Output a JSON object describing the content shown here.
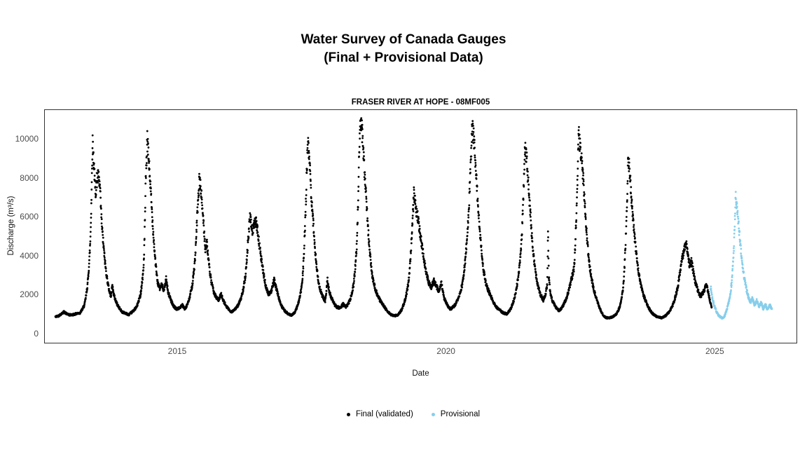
{
  "header": {
    "title_line1": "Water Survey of Canada Gauges",
    "title_line2": "(Final + Provisional Data)"
  },
  "legend": {
    "items": [
      {
        "label": "Final (validated)",
        "color": "#000000"
      },
      {
        "label": "Provisional",
        "color": "#87CEEB"
      }
    ]
  },
  "colors": {
    "final": "#000000",
    "provisional": "#87CEEB",
    "panel_border": "#333333",
    "tick_text": "#4d4d4d"
  },
  "chart_data": {
    "type": "scatter",
    "title": "FRASER RIVER AT HOPE - 08MF005",
    "xlabel": "Date",
    "ylabel": "Discharge (m³/s)",
    "x_ticks": [
      2015,
      2020,
      2025
    ],
    "y_ticks": [
      0,
      2000,
      4000,
      6000,
      8000,
      10000
    ],
    "xlim": [
      2012.5,
      2026.55
    ],
    "ylim": [
      -500,
      11500
    ],
    "grid": false,
    "legend_position": "bottom",
    "point_radius_px": 1.4,
    "sample_step_days": 1,
    "noise_sigma": 0.05,
    "series": [
      {
        "name": "Final (validated)",
        "color": "#000000",
        "seed": 42,
        "points": [
          [
            2012.72,
            900
          ],
          [
            2012.78,
            950
          ],
          [
            2012.83,
            1050
          ],
          [
            2012.88,
            1150
          ],
          [
            2012.93,
            1050
          ],
          [
            2012.97,
            1000
          ],
          [
            2013.03,
            1000
          ],
          [
            2013.1,
            1050
          ],
          [
            2013.18,
            1100
          ],
          [
            2013.26,
            1500
          ],
          [
            2013.32,
            2600
          ],
          [
            2013.37,
            4800
          ],
          [
            2013.41,
            9900
          ],
          [
            2013.44,
            8600
          ],
          [
            2013.465,
            7200
          ],
          [
            2013.49,
            7900
          ],
          [
            2013.52,
            8100
          ],
          [
            2013.55,
            7500
          ],
          [
            2013.58,
            5800
          ],
          [
            2013.62,
            4400
          ],
          [
            2013.66,
            3300
          ],
          [
            2013.71,
            2400
          ],
          [
            2013.75,
            1950
          ],
          [
            2013.78,
            2500
          ],
          [
            2013.81,
            2000
          ],
          [
            2013.86,
            1600
          ],
          [
            2013.91,
            1350
          ],
          [
            2013.96,
            1150
          ],
          [
            2014.02,
            1100
          ],
          [
            2014.08,
            1000
          ],
          [
            2014.15,
            1150
          ],
          [
            2014.23,
            1400
          ],
          [
            2014.3,
            2000
          ],
          [
            2014.36,
            3400
          ],
          [
            2014.4,
            7800
          ],
          [
            2014.43,
            9950
          ],
          [
            2014.46,
            8900
          ],
          [
            2014.5,
            7100
          ],
          [
            2014.54,
            5300
          ],
          [
            2014.58,
            3800
          ],
          [
            2014.62,
            2700
          ],
          [
            2014.66,
            2350
          ],
          [
            2014.7,
            2550
          ],
          [
            2014.74,
            2250
          ],
          [
            2014.78,
            2850
          ],
          [
            2014.82,
            2150
          ],
          [
            2014.87,
            1750
          ],
          [
            2014.92,
            1450
          ],
          [
            2014.97,
            1300
          ],
          [
            2015.03,
            1350
          ],
          [
            2015.08,
            1500
          ],
          [
            2015.13,
            1300
          ],
          [
            2015.2,
            1700
          ],
          [
            2015.27,
            2600
          ],
          [
            2015.32,
            3900
          ],
          [
            2015.36,
            6200
          ],
          [
            2015.4,
            8000
          ],
          [
            2015.43,
            7300
          ],
          [
            2015.47,
            6000
          ],
          [
            2015.51,
            4400
          ],
          [
            2015.54,
            4700
          ],
          [
            2015.58,
            3500
          ],
          [
            2015.62,
            2700
          ],
          [
            2015.67,
            2150
          ],
          [
            2015.71,
            1900
          ],
          [
            2015.76,
            1750
          ],
          [
            2015.8,
            2100
          ],
          [
            2015.84,
            1750
          ],
          [
            2015.89,
            1500
          ],
          [
            2015.94,
            1300
          ],
          [
            2015.99,
            1150
          ],
          [
            2016.05,
            1250
          ],
          [
            2016.11,
            1450
          ],
          [
            2016.18,
            1900
          ],
          [
            2016.25,
            2900
          ],
          [
            2016.3,
            4600
          ],
          [
            2016.34,
            6100
          ],
          [
            2016.38,
            5300
          ],
          [
            2016.42,
            5650
          ],
          [
            2016.46,
            5750
          ],
          [
            2016.5,
            4900
          ],
          [
            2016.55,
            3900
          ],
          [
            2016.6,
            3000
          ],
          [
            2016.64,
            2400
          ],
          [
            2016.69,
            2050
          ],
          [
            2016.74,
            2250
          ],
          [
            2016.79,
            2800
          ],
          [
            2016.84,
            2250
          ],
          [
            2016.89,
            1750
          ],
          [
            2016.94,
            1400
          ],
          [
            2016.99,
            1200
          ],
          [
            2017.05,
            1050
          ],
          [
            2017.11,
            980
          ],
          [
            2017.18,
            1150
          ],
          [
            2017.25,
            1700
          ],
          [
            2017.31,
            2600
          ],
          [
            2017.36,
            5200
          ],
          [
            2017.4,
            8800
          ],
          [
            2017.425,
            9750
          ],
          [
            2017.45,
            8900
          ],
          [
            2017.48,
            7200
          ],
          [
            2017.52,
            5600
          ],
          [
            2017.56,
            4100
          ],
          [
            2017.6,
            3000
          ],
          [
            2017.64,
            2350
          ],
          [
            2017.69,
            1950
          ],
          [
            2017.74,
            1700
          ],
          [
            2017.78,
            2850
          ],
          [
            2017.81,
            2250
          ],
          [
            2017.86,
            1850
          ],
          [
            2017.91,
            1550
          ],
          [
            2017.96,
            1400
          ],
          [
            2018.02,
            1350
          ],
          [
            2018.07,
            1550
          ],
          [
            2018.13,
            1400
          ],
          [
            2018.2,
            1750
          ],
          [
            2018.27,
            2600
          ],
          [
            2018.33,
            4700
          ],
          [
            2018.37,
            9400
          ],
          [
            2018.4,
            11000
          ],
          [
            2018.43,
            10300
          ],
          [
            2018.46,
            8800
          ],
          [
            2018.5,
            7100
          ],
          [
            2018.54,
            5300
          ],
          [
            2018.58,
            3900
          ],
          [
            2018.62,
            2950
          ],
          [
            2018.67,
            2350
          ],
          [
            2018.72,
            1950
          ],
          [
            2018.77,
            1700
          ],
          [
            2018.82,
            1500
          ],
          [
            2018.87,
            1300
          ],
          [
            2018.92,
            1120
          ],
          [
            2018.97,
            1000
          ],
          [
            2019.03,
            950
          ],
          [
            2019.09,
            1000
          ],
          [
            2019.16,
            1250
          ],
          [
            2019.23,
            1800
          ],
          [
            2019.3,
            2900
          ],
          [
            2019.35,
            5100
          ],
          [
            2019.39,
            7300
          ],
          [
            2019.43,
            6400
          ],
          [
            2019.47,
            5900
          ],
          [
            2019.51,
            5100
          ],
          [
            2019.56,
            4200
          ],
          [
            2019.61,
            3300
          ],
          [
            2019.66,
            2700
          ],
          [
            2019.71,
            2400
          ],
          [
            2019.76,
            2750
          ],
          [
            2019.81,
            2450
          ],
          [
            2019.86,
            2200
          ],
          [
            2019.9,
            2650
          ],
          [
            2019.95,
            1900
          ],
          [
            2020.01,
            1500
          ],
          [
            2020.07,
            1300
          ],
          [
            2020.14,
            1450
          ],
          [
            2020.22,
            1850
          ],
          [
            2020.3,
            2700
          ],
          [
            2020.37,
            4600
          ],
          [
            2020.43,
            7600
          ],
          [
            2020.475,
            10700
          ],
          [
            2020.51,
            9900
          ],
          [
            2020.545,
            8400
          ],
          [
            2020.59,
            6300
          ],
          [
            2020.64,
            4500
          ],
          [
            2020.69,
            3200
          ],
          [
            2020.74,
            2500
          ],
          [
            2020.79,
            2150
          ],
          [
            2020.84,
            1850
          ],
          [
            2020.89,
            1550
          ],
          [
            2020.94,
            1350
          ],
          [
            2020.99,
            1250
          ],
          [
            2021.05,
            1100
          ],
          [
            2021.12,
            1050
          ],
          [
            2021.19,
            1300
          ],
          [
            2021.26,
            1850
          ],
          [
            2021.33,
            2900
          ],
          [
            2021.4,
            5200
          ],
          [
            2021.455,
            9700
          ],
          [
            2021.49,
            8900
          ],
          [
            2021.52,
            7700
          ],
          [
            2021.56,
            6100
          ],
          [
            2021.6,
            4500
          ],
          [
            2021.65,
            3250
          ],
          [
            2021.7,
            2450
          ],
          [
            2021.75,
            2000
          ],
          [
            2021.8,
            1750
          ],
          [
            2021.845,
            2150
          ],
          [
            2021.87,
            2500
          ],
          [
            2021.885,
            5400
          ],
          [
            2021.9,
            3000
          ],
          [
            2021.93,
            2100
          ],
          [
            2021.97,
            1700
          ],
          [
            2022.03,
            1400
          ],
          [
            2022.09,
            1200
          ],
          [
            2022.16,
            1450
          ],
          [
            2022.24,
            1950
          ],
          [
            2022.31,
            2700
          ],
          [
            2022.37,
            3400
          ],
          [
            2022.42,
            6800
          ],
          [
            2022.455,
            10300
          ],
          [
            2022.48,
            9600
          ],
          [
            2022.51,
            9000
          ],
          [
            2022.545,
            7800
          ],
          [
            2022.58,
            6200
          ],
          [
            2022.62,
            4600
          ],
          [
            2022.67,
            3300
          ],
          [
            2022.72,
            2500
          ],
          [
            2022.77,
            1950
          ],
          [
            2022.82,
            1550
          ],
          [
            2022.87,
            1200
          ],
          [
            2022.92,
            950
          ],
          [
            2022.97,
            850
          ],
          [
            2023.03,
            850
          ],
          [
            2023.09,
            900
          ],
          [
            2023.16,
            1050
          ],
          [
            2023.23,
            1500
          ],
          [
            2023.29,
            2600
          ],
          [
            2023.34,
            5600
          ],
          [
            2023.375,
            9000
          ],
          [
            2023.41,
            8300
          ],
          [
            2023.44,
            6900
          ],
          [
            2023.48,
            5500
          ],
          [
            2023.52,
            4300
          ],
          [
            2023.57,
            3200
          ],
          [
            2023.62,
            2450
          ],
          [
            2023.67,
            1950
          ],
          [
            2023.72,
            1600
          ],
          [
            2023.77,
            1300
          ],
          [
            2023.82,
            1100
          ],
          [
            2023.88,
            950
          ],
          [
            2023.94,
            880
          ],
          [
            2024.0,
            850
          ],
          [
            2024.07,
            950
          ],
          [
            2024.14,
            1150
          ],
          [
            2024.22,
            1600
          ],
          [
            2024.29,
            2300
          ],
          [
            2024.36,
            3600
          ],
          [
            2024.42,
            4400
          ],
          [
            2024.455,
            4700
          ],
          [
            2024.49,
            4100
          ],
          [
            2024.52,
            3500
          ],
          [
            2024.555,
            3800
          ],
          [
            2024.59,
            3200
          ],
          [
            2024.63,
            2650
          ],
          [
            2024.68,
            2200
          ],
          [
            2024.72,
            1950
          ],
          [
            2024.76,
            2100
          ],
          [
            2024.8,
            2300
          ],
          [
            2024.83,
            2600
          ],
          [
            2024.87,
            2100
          ],
          [
            2024.9,
            1700
          ],
          [
            2024.93,
            1400
          ]
        ]
      },
      {
        "name": "Provisional",
        "color": "#87CEEB",
        "seed": 7,
        "points": [
          [
            2024.91,
            2450
          ],
          [
            2024.94,
            1900
          ],
          [
            2024.97,
            1550
          ],
          [
            2025.0,
            1300
          ],
          [
            2025.05,
            1000
          ],
          [
            2025.1,
            870
          ],
          [
            2025.14,
            820
          ],
          [
            2025.18,
            1000
          ],
          [
            2025.22,
            1350
          ],
          [
            2025.26,
            1800
          ],
          [
            2025.3,
            2600
          ],
          [
            2025.34,
            4300
          ],
          [
            2025.375,
            7050
          ],
          [
            2025.4,
            6400
          ],
          [
            2025.43,
            5700
          ],
          [
            2025.46,
            4700
          ],
          [
            2025.49,
            3800
          ],
          [
            2025.53,
            3000
          ],
          [
            2025.57,
            2400
          ],
          [
            2025.61,
            1950
          ],
          [
            2025.65,
            1650
          ],
          [
            2025.69,
            1850
          ],
          [
            2025.73,
            1500
          ],
          [
            2025.77,
            1750
          ],
          [
            2025.81,
            1400
          ],
          [
            2025.85,
            1650
          ],
          [
            2025.89,
            1300
          ],
          [
            2025.93,
            1550
          ],
          [
            2025.97,
            1250
          ],
          [
            2026.01,
            1500
          ],
          [
            2026.05,
            1300
          ]
        ]
      }
    ]
  }
}
